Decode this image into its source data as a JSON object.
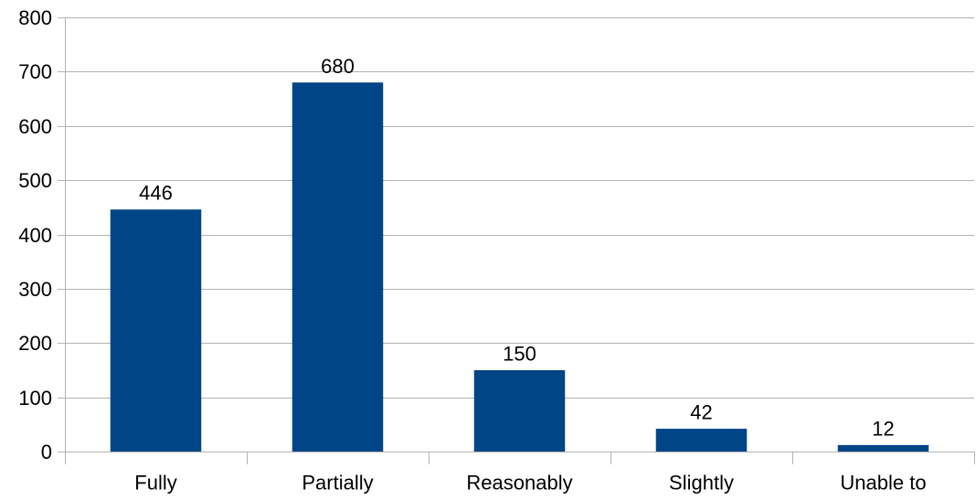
{
  "chart_data": {
    "type": "bar",
    "title": "",
    "xlabel": "",
    "ylabel": "",
    "categories": [
      "Fully",
      "Partially",
      "Reasonably",
      "Slightly",
      "Unable to"
    ],
    "values": [
      446,
      680,
      150,
      42,
      12
    ],
    "data_labels": [
      "446",
      "680",
      "150",
      "42",
      "12"
    ],
    "ylim": [
      0,
      800
    ],
    "yticks": [
      0,
      100,
      200,
      300,
      400,
      500,
      600,
      700,
      800
    ],
    "ytick_labels": [
      "0",
      "100",
      "200",
      "300",
      "400",
      "500",
      "600",
      "700",
      "800"
    ],
    "grid": true,
    "legend": "none",
    "colors": {
      "bar": "#004586",
      "grid": "#b3b3b3",
      "text": "#000000"
    }
  }
}
